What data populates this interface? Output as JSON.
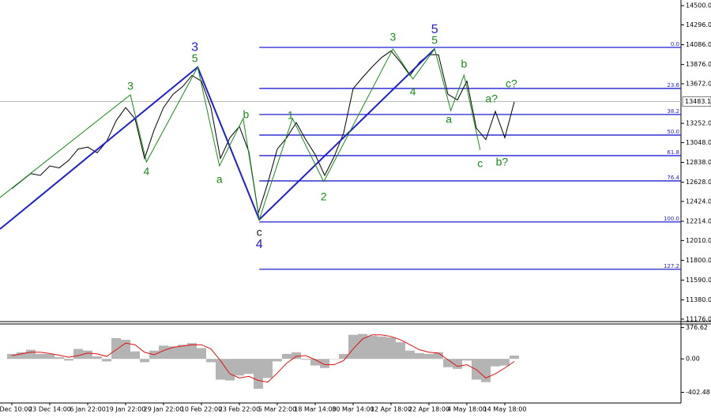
{
  "chart_data": [
    {
      "type": "line",
      "series": [
        {
          "color": "#000000",
          "values": [
            12560,
            12640,
            12720,
            12700,
            12800,
            12780,
            12860,
            12980,
            13000,
            12940,
            13060,
            13280,
            13420,
            13300,
            12880,
            13180,
            13420,
            13560,
            13640,
            13760,
            13700,
            13420,
            12880,
            13100,
            13220,
            12950,
            12300,
            12620,
            12980,
            13100,
            13260,
            13080,
            12920,
            12700,
            12900,
            13150,
            13620,
            13740,
            13850,
            13950,
            14020,
            13900,
            13760,
            13900,
            13980,
            13980,
            13560,
            13500,
            13700,
            13200,
            13080,
            13380,
            13100,
            13480
          ]
        }
      ],
      "ylim": [
        11150,
        14560
      ],
      "yticks": [
        {
          "value": 14500,
          "label": "14500.0"
        },
        {
          "value": 14296,
          "label": "14296.0"
        },
        {
          "value": 14086,
          "label": "14086.0"
        },
        {
          "value": 13876,
          "label": "13876.0"
        },
        {
          "value": 13672,
          "label": "13672.0"
        },
        {
          "value": 13252,
          "label": "13252.0"
        },
        {
          "value": 13048,
          "label": "13048.0"
        },
        {
          "value": 12838,
          "label": "12838.0"
        },
        {
          "value": 12628,
          "label": "12628.0"
        },
        {
          "value": 12424,
          "label": "12424.0"
        },
        {
          "value": 12214,
          "label": "12214.0"
        },
        {
          "value": 12010,
          "label": "12010.0"
        },
        {
          "value": 11800,
          "label": "11800.0"
        },
        {
          "value": 11590,
          "label": "11590.0"
        },
        {
          "value": 11380,
          "label": "11380.0"
        },
        {
          "value": 11176,
          "label": "11176.0"
        }
      ],
      "last_price": 13483.1,
      "fib_levels": [
        {
          "label": "0.0",
          "price": 14057
        },
        {
          "label": "23.6",
          "price": 13622
        },
        {
          "label": "38.2",
          "price": 13346
        },
        {
          "label": "50.0",
          "price": 13128
        },
        {
          "label": "61.8",
          "price": 12910
        },
        {
          "label": "76.4",
          "price": 12642
        },
        {
          "label": "100.0",
          "price": 12207
        },
        {
          "label": "127.2",
          "price": 11705
        }
      ],
      "fib_start": 26.1,
      "wave_lines": [
        {
          "color": "#1f1fd0",
          "width": 2,
          "points": [
            [
              -1.25,
              12131
            ],
            [
              19.6,
              13848
            ],
            [
              26.1,
              12232
            ],
            [
              44.6,
              14041
            ]
          ]
        },
        {
          "color": "#1a8a1a",
          "width": 1,
          "points": [
            [
              -1.25,
              12466
            ],
            [
              12.5,
              13555
            ],
            [
              14.2,
              12843
            ],
            [
              19.6,
              13848
            ],
            [
              21.9,
              12801
            ],
            [
              24.4,
              13304
            ],
            [
              26.1,
              12232
            ]
          ]
        },
        {
          "color": "#1a8a1a",
          "width": 1,
          "points": [
            [
              26.1,
              12232
            ],
            [
              29.6,
              13304
            ],
            [
              32.9,
              12634
            ],
            [
              40.2,
              14041
            ],
            [
              42.3,
              13722
            ],
            [
              44.6,
              14041
            ],
            [
              46.3,
              13387
            ],
            [
              47.7,
              13764
            ],
            [
              49.4,
              12969
            ]
          ]
        }
      ],
      "annotations": [
        {
          "text": "3",
          "color": "#1a8a1a",
          "at": 12.5,
          "price": 13639
        },
        {
          "text": "4",
          "color": "#1a8a1a",
          "at": 14.2,
          "price": 12734
        },
        {
          "text": "3",
          "color": "#1f1fd0",
          "at": 19.3,
          "price": 14057
        },
        {
          "text": "5",
          "color": "#1a8a1a",
          "at": 19.3,
          "price": 13932
        },
        {
          "text": "a",
          "color": "#1a8a1a",
          "at": 21.9,
          "price": 12650
        },
        {
          "text": "b",
          "color": "#1a8a1a",
          "at": 24.7,
          "price": 13337
        },
        {
          "text": "c",
          "color": "#1a1a1a",
          "at": 26.1,
          "price": 12089
        },
        {
          "text": "4",
          "color": "#1f1fd0",
          "at": 26.1,
          "price": 11964
        },
        {
          "text": "1",
          "color": "#1a8a1a",
          "at": 29.4,
          "price": 13329
        },
        {
          "text": "2",
          "color": "#1a8a1a",
          "at": 32.9,
          "price": 12466
        },
        {
          "text": "3",
          "color": "#1a8a1a",
          "at": 40.2,
          "price": 14158
        },
        {
          "text": "5",
          "color": "#1f1fd0",
          "at": 44.6,
          "price": 14242
        },
        {
          "text": "5",
          "color": "#1a8a1a",
          "at": 44.6,
          "price": 14125
        },
        {
          "text": "4",
          "color": "#1a8a1a",
          "at": 42.3,
          "price": 13580
        },
        {
          "text": "a",
          "color": "#1a8a1a",
          "at": 46.1,
          "price": 13287
        },
        {
          "text": "b",
          "color": "#1a8a1a",
          "at": 47.7,
          "price": 13873
        },
        {
          "text": "c",
          "color": "#1a8a1a",
          "at": 49.4,
          "price": 12818
        },
        {
          "text": "a?",
          "color": "#1a8a1a",
          "at": 50.6,
          "price": 13505
        },
        {
          "text": "b?",
          "color": "#1a8a1a",
          "at": 51.7,
          "price": 12835
        },
        {
          "text": "c?",
          "color": "#1a8a1a",
          "at": 52.7,
          "price": 13664
        }
      ]
    },
    {
      "type": "bar",
      "categories": [
        "Dec 10:00",
        null,
        null,
        null,
        "23 Dec 14:00",
        null,
        null,
        null,
        "6 Jan 22:00",
        null,
        null,
        null,
        "19 Jan 22:00",
        null,
        null,
        null,
        "29 Jan 22:00",
        null,
        null,
        null,
        "10 Feb 22:00",
        null,
        null,
        null,
        "23 Feb 22:00",
        null,
        null,
        null,
        "5 Mar 22:00",
        null,
        null,
        null,
        "18 Mar 14:00",
        null,
        null,
        null,
        "30 Mar 14:00",
        null,
        null,
        null,
        "12 Apr 18:00",
        null,
        null,
        null,
        "22 Apr 18:00",
        null,
        null,
        null,
        "4 May 18:00",
        null,
        null,
        null,
        "14 May 18:00",
        null
      ],
      "series": [
        {
          "type": "bar",
          "color": "#b4b4b4",
          "values": [
            60,
            80,
            110,
            60,
            60,
            20,
            -20,
            120,
            100,
            30,
            -30,
            250,
            230,
            90,
            -40,
            100,
            160,
            150,
            170,
            190,
            130,
            -40,
            -250,
            -260,
            -200,
            -180,
            -360,
            -230,
            -30,
            60,
            80,
            -10,
            -80,
            -110,
            0,
            60,
            290,
            300,
            280,
            270,
            260,
            200,
            100,
            70,
            60,
            80,
            -100,
            -120,
            -20,
            -250,
            -280,
            -90,
            -80,
            40
          ]
        },
        {
          "type": "line",
          "color": "#e01010",
          "values": [
            40,
            60,
            80,
            80,
            65,
            45,
            20,
            40,
            70,
            60,
            30,
            110,
            190,
            170,
            80,
            50,
            100,
            140,
            155,
            170,
            170,
            120,
            -20,
            -180,
            -230,
            -210,
            -260,
            -280,
            -170,
            -50,
            30,
            40,
            -10,
            -70,
            -70,
            -20,
            120,
            240,
            290,
            290,
            270,
            230,
            170,
            110,
            80,
            70,
            -10,
            -90,
            -70,
            -130,
            -230,
            -180,
            -110,
            -30
          ]
        }
      ],
      "ylim": [
        -531,
        411
      ],
      "yticks": [
        376.62,
        {
          "value": 0,
          "label": "0.00"
        },
        -402.48
      ]
    }
  ]
}
